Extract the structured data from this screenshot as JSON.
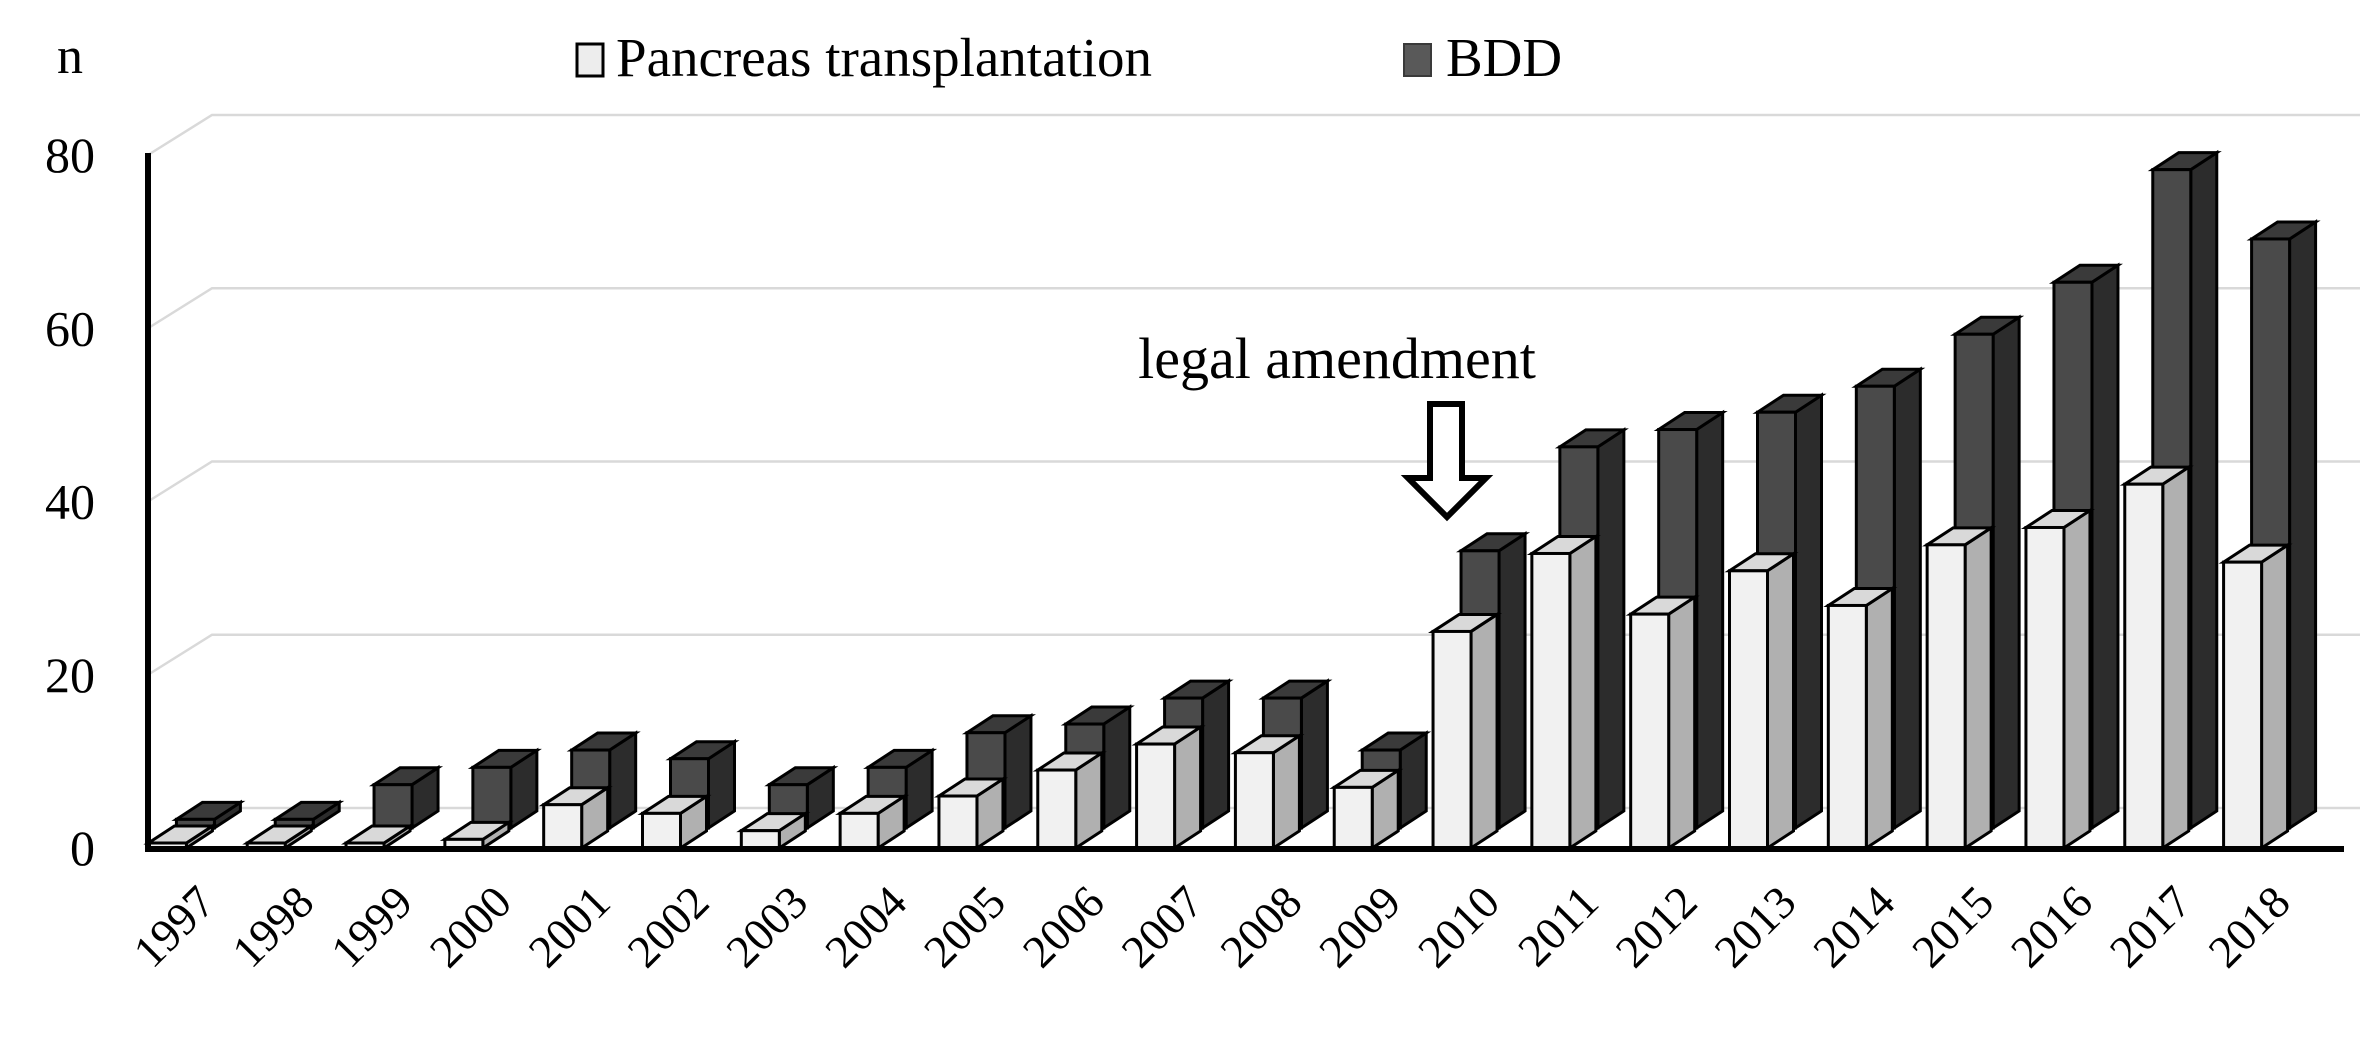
{
  "chart_data": {
    "type": "bar",
    "style": "3d-grouped",
    "title": "",
    "ylabel": "n",
    "xlabel": "",
    "categories": [
      "1997",
      "1998",
      "1999",
      "2000",
      "2001",
      "2002",
      "2003",
      "2004",
      "2005",
      "2006",
      "2007",
      "2008",
      "2009",
      "2010",
      "2011",
      "2012",
      "2013",
      "2014",
      "2015",
      "2016",
      "2017",
      "2018"
    ],
    "series": [
      {
        "name": "Pancreas transplantation",
        "values": [
          0,
          0,
          0,
          1,
          5,
          4,
          2,
          4,
          6,
          9,
          12,
          11,
          7,
          25,
          34,
          27,
          32,
          28,
          35,
          37,
          42,
          33
        ]
      },
      {
        "name": "BDD",
        "values": [
          1,
          1,
          5,
          7,
          9,
          8,
          5,
          7,
          11,
          12,
          15,
          15,
          9,
          32,
          44,
          46,
          48,
          51,
          57,
          63,
          76,
          68
        ]
      }
    ],
    "ylim": [
      0,
      80
    ],
    "yticks": [
      0,
      20,
      40,
      60,
      80
    ],
    "grid": true,
    "legend_position": "top-center",
    "annotation": {
      "text": "legal amendment",
      "target_category": "2010"
    }
  },
  "legend": {
    "items": [
      {
        "label": "Pancreas transplantation",
        "swatch_color": "#ededed"
      },
      {
        "label": "BDD",
        "swatch_color": "#595959"
      }
    ]
  },
  "axis": {
    "unit_label": "n",
    "ytick_labels": [
      "0",
      "20",
      "40",
      "60",
      "80"
    ]
  },
  "annotation": {
    "label": "legal amendment"
  },
  "colors": {
    "light_front": "#f1f1f1",
    "light_top": "#d9d9d9",
    "light_side": "#b0b0b0",
    "dark_front": "#4a4a4a",
    "dark_top": "#3a3a3a",
    "dark_side": "#2c2c2c",
    "gridline": "#d9d9d9",
    "axis": "#000000",
    "background": "#ffffff"
  }
}
